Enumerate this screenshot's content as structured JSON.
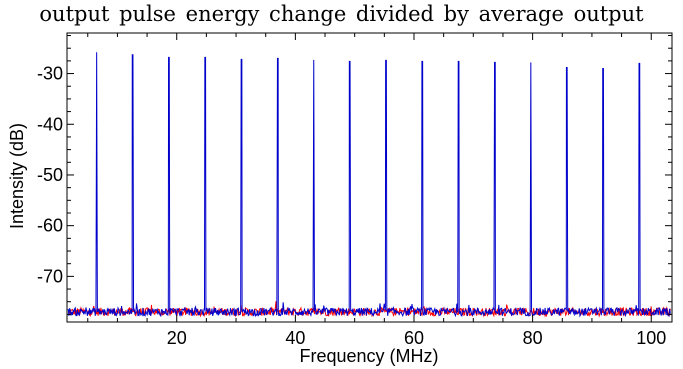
{
  "caption": "output pulse energy change divided by average output",
  "chart_data": {
    "type": "line",
    "title": "",
    "xlabel": "Frequency (MHz)",
    "ylabel": "Intensity (dB)",
    "xlim": [
      1.5,
      103.5
    ],
    "ylim": [
      -79,
      -22
    ],
    "xticks": [
      20,
      40,
      60,
      80,
      100
    ],
    "yticks": [
      -30,
      -40,
      -50,
      -60,
      -70
    ],
    "x_minor_step": 5,
    "y_minor_step": 2.5,
    "grid": false,
    "noise_floor": -77,
    "series": [
      {
        "color": "#0000cc",
        "peaks": [
          {
            "x": 6.5,
            "y": -25.8
          },
          {
            "x": 12.6,
            "y": -26.3
          },
          {
            "x": 18.7,
            "y": -26.8
          },
          {
            "x": 24.8,
            "y": -26.8
          },
          {
            "x": 30.9,
            "y": -27.2
          },
          {
            "x": 37.0,
            "y": -27.0
          },
          {
            "x": 43.1,
            "y": -27.3
          },
          {
            "x": 49.2,
            "y": -27.6
          },
          {
            "x": 55.3,
            "y": -27.4
          },
          {
            "x": 61.4,
            "y": -27.6
          },
          {
            "x": 67.5,
            "y": -27.6
          },
          {
            "x": 73.6,
            "y": -27.8
          },
          {
            "x": 79.7,
            "y": -27.8
          },
          {
            "x": 85.8,
            "y": -28.8
          },
          {
            "x": 91.9,
            "y": -29.0
          },
          {
            "x": 98.0,
            "y": -28.0
          }
        ]
      },
      {
        "color": "#ff0000",
        "peaks": []
      }
    ]
  }
}
